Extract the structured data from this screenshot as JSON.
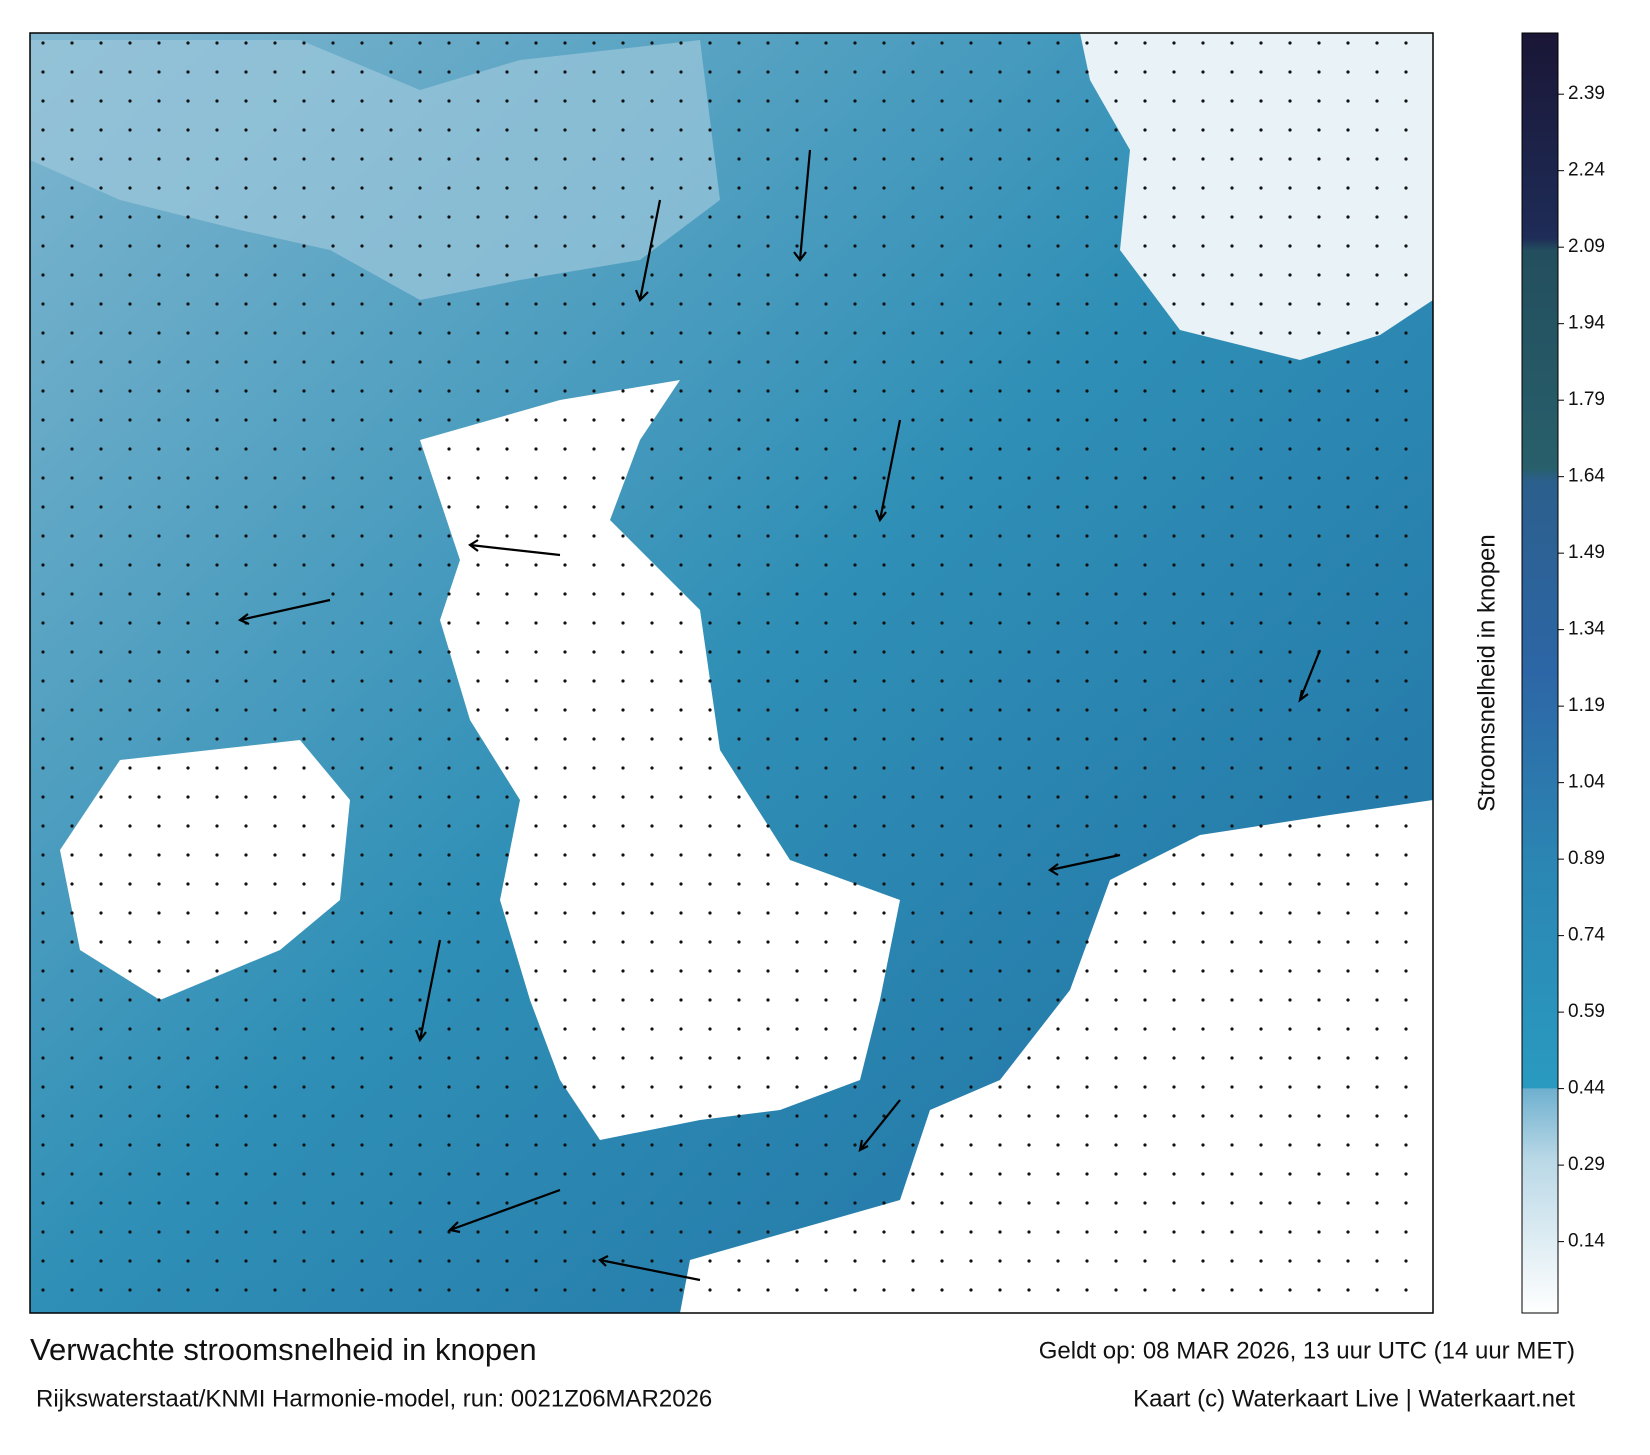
{
  "colorbar": {
    "label": "Stroomsnelheid in knopen",
    "range": [
      0,
      2.51
    ],
    "ticks": [
      0.14,
      0.29,
      0.44,
      0.59,
      0.74,
      0.89,
      1.04,
      1.19,
      1.34,
      1.49,
      1.64,
      1.79,
      1.94,
      2.09,
      2.24,
      2.39
    ]
  },
  "footer": {
    "title": "Verwachte stroomsnelheid in knopen",
    "model": "Rijkswaterstaat/KNMI Harmonie-model, run: 0021Z06MAR2026",
    "valid": "Geldt op: 08 MAR 2026, 13 uur UTC (14 uur MET)",
    "credit": "Kaart (c) Waterkaart Live | Waterkaart.net"
  }
}
